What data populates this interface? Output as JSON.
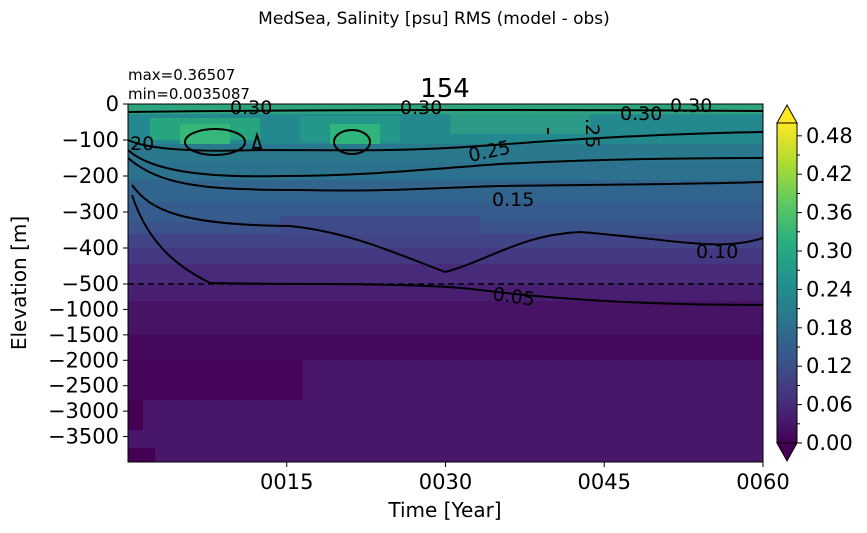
{
  "chart_data": {
    "type": "heatmap",
    "suptitle": "MedSea, Salinity [psu] RMS (model - obs)",
    "title": "154",
    "stats": {
      "max": "max=0.36507",
      "min": "min=0.0035087"
    },
    "xlabel": "Time [Year]",
    "ylabel": "Elevation [m]",
    "x_ticks": [
      "0015",
      "0030",
      "0045",
      "0060"
    ],
    "x_tick_values": [
      15,
      30,
      45,
      60
    ],
    "xlim": [
      0,
      60
    ],
    "y_ticks": [
      "0",
      "−100",
      "−200",
      "−300",
      "−400",
      "−500",
      "−1000",
      "−1500",
      "−2000",
      "−2500",
      "−3000",
      "−3500"
    ],
    "y_tick_values": [
      0,
      -100,
      -200,
      -300,
      -400,
      -500,
      -1000,
      -1500,
      -2000,
      -2500,
      -3000,
      -3500
    ],
    "y_axis_note": "piecewise scale: 0 to -500 m stretched, -500 to -4000 m compressed",
    "ylim": [
      -4000,
      0
    ],
    "colorbar": {
      "colormap": "viridis",
      "range": [
        0.0,
        0.5
      ],
      "extend": "both",
      "tick_labels": [
        "0.00",
        "0.06",
        "0.12",
        "0.18",
        "0.24",
        "0.30",
        "0.36",
        "0.42",
        "0.48"
      ],
      "tick_values": [
        0.0,
        0.06,
        0.12,
        0.18,
        0.24,
        0.3,
        0.36,
        0.42,
        0.48
      ]
    },
    "contour_labels": [
      "0.30",
      "0.30",
      "0.30",
      "0.30",
      "20",
      "0.25",
      ".25",
      "0.15",
      "0.10",
      "0.05"
    ],
    "contour_levels": [
      0.05,
      0.1,
      0.15,
      0.2,
      0.25,
      0.3
    ],
    "separator_depth": -500,
    "depth_profile_approx": [
      {
        "depth": -5,
        "value": 0.3
      },
      {
        "depth": -50,
        "value": 0.26
      },
      {
        "depth": -100,
        "value": 0.27
      },
      {
        "depth": -150,
        "value": 0.22
      },
      {
        "depth": -200,
        "value": 0.17
      },
      {
        "depth": -250,
        "value": 0.16
      },
      {
        "depth": -300,
        "value": 0.13
      },
      {
        "depth": -400,
        "value": 0.09
      },
      {
        "depth": -500,
        "value": 0.07
      },
      {
        "depth": -1000,
        "value": 0.04
      },
      {
        "depth": -1500,
        "value": 0.025
      },
      {
        "depth": -2000,
        "value": 0.02
      },
      {
        "depth": -3000,
        "value": 0.03
      },
      {
        "depth": -3500,
        "value": 0.03
      }
    ]
  }
}
